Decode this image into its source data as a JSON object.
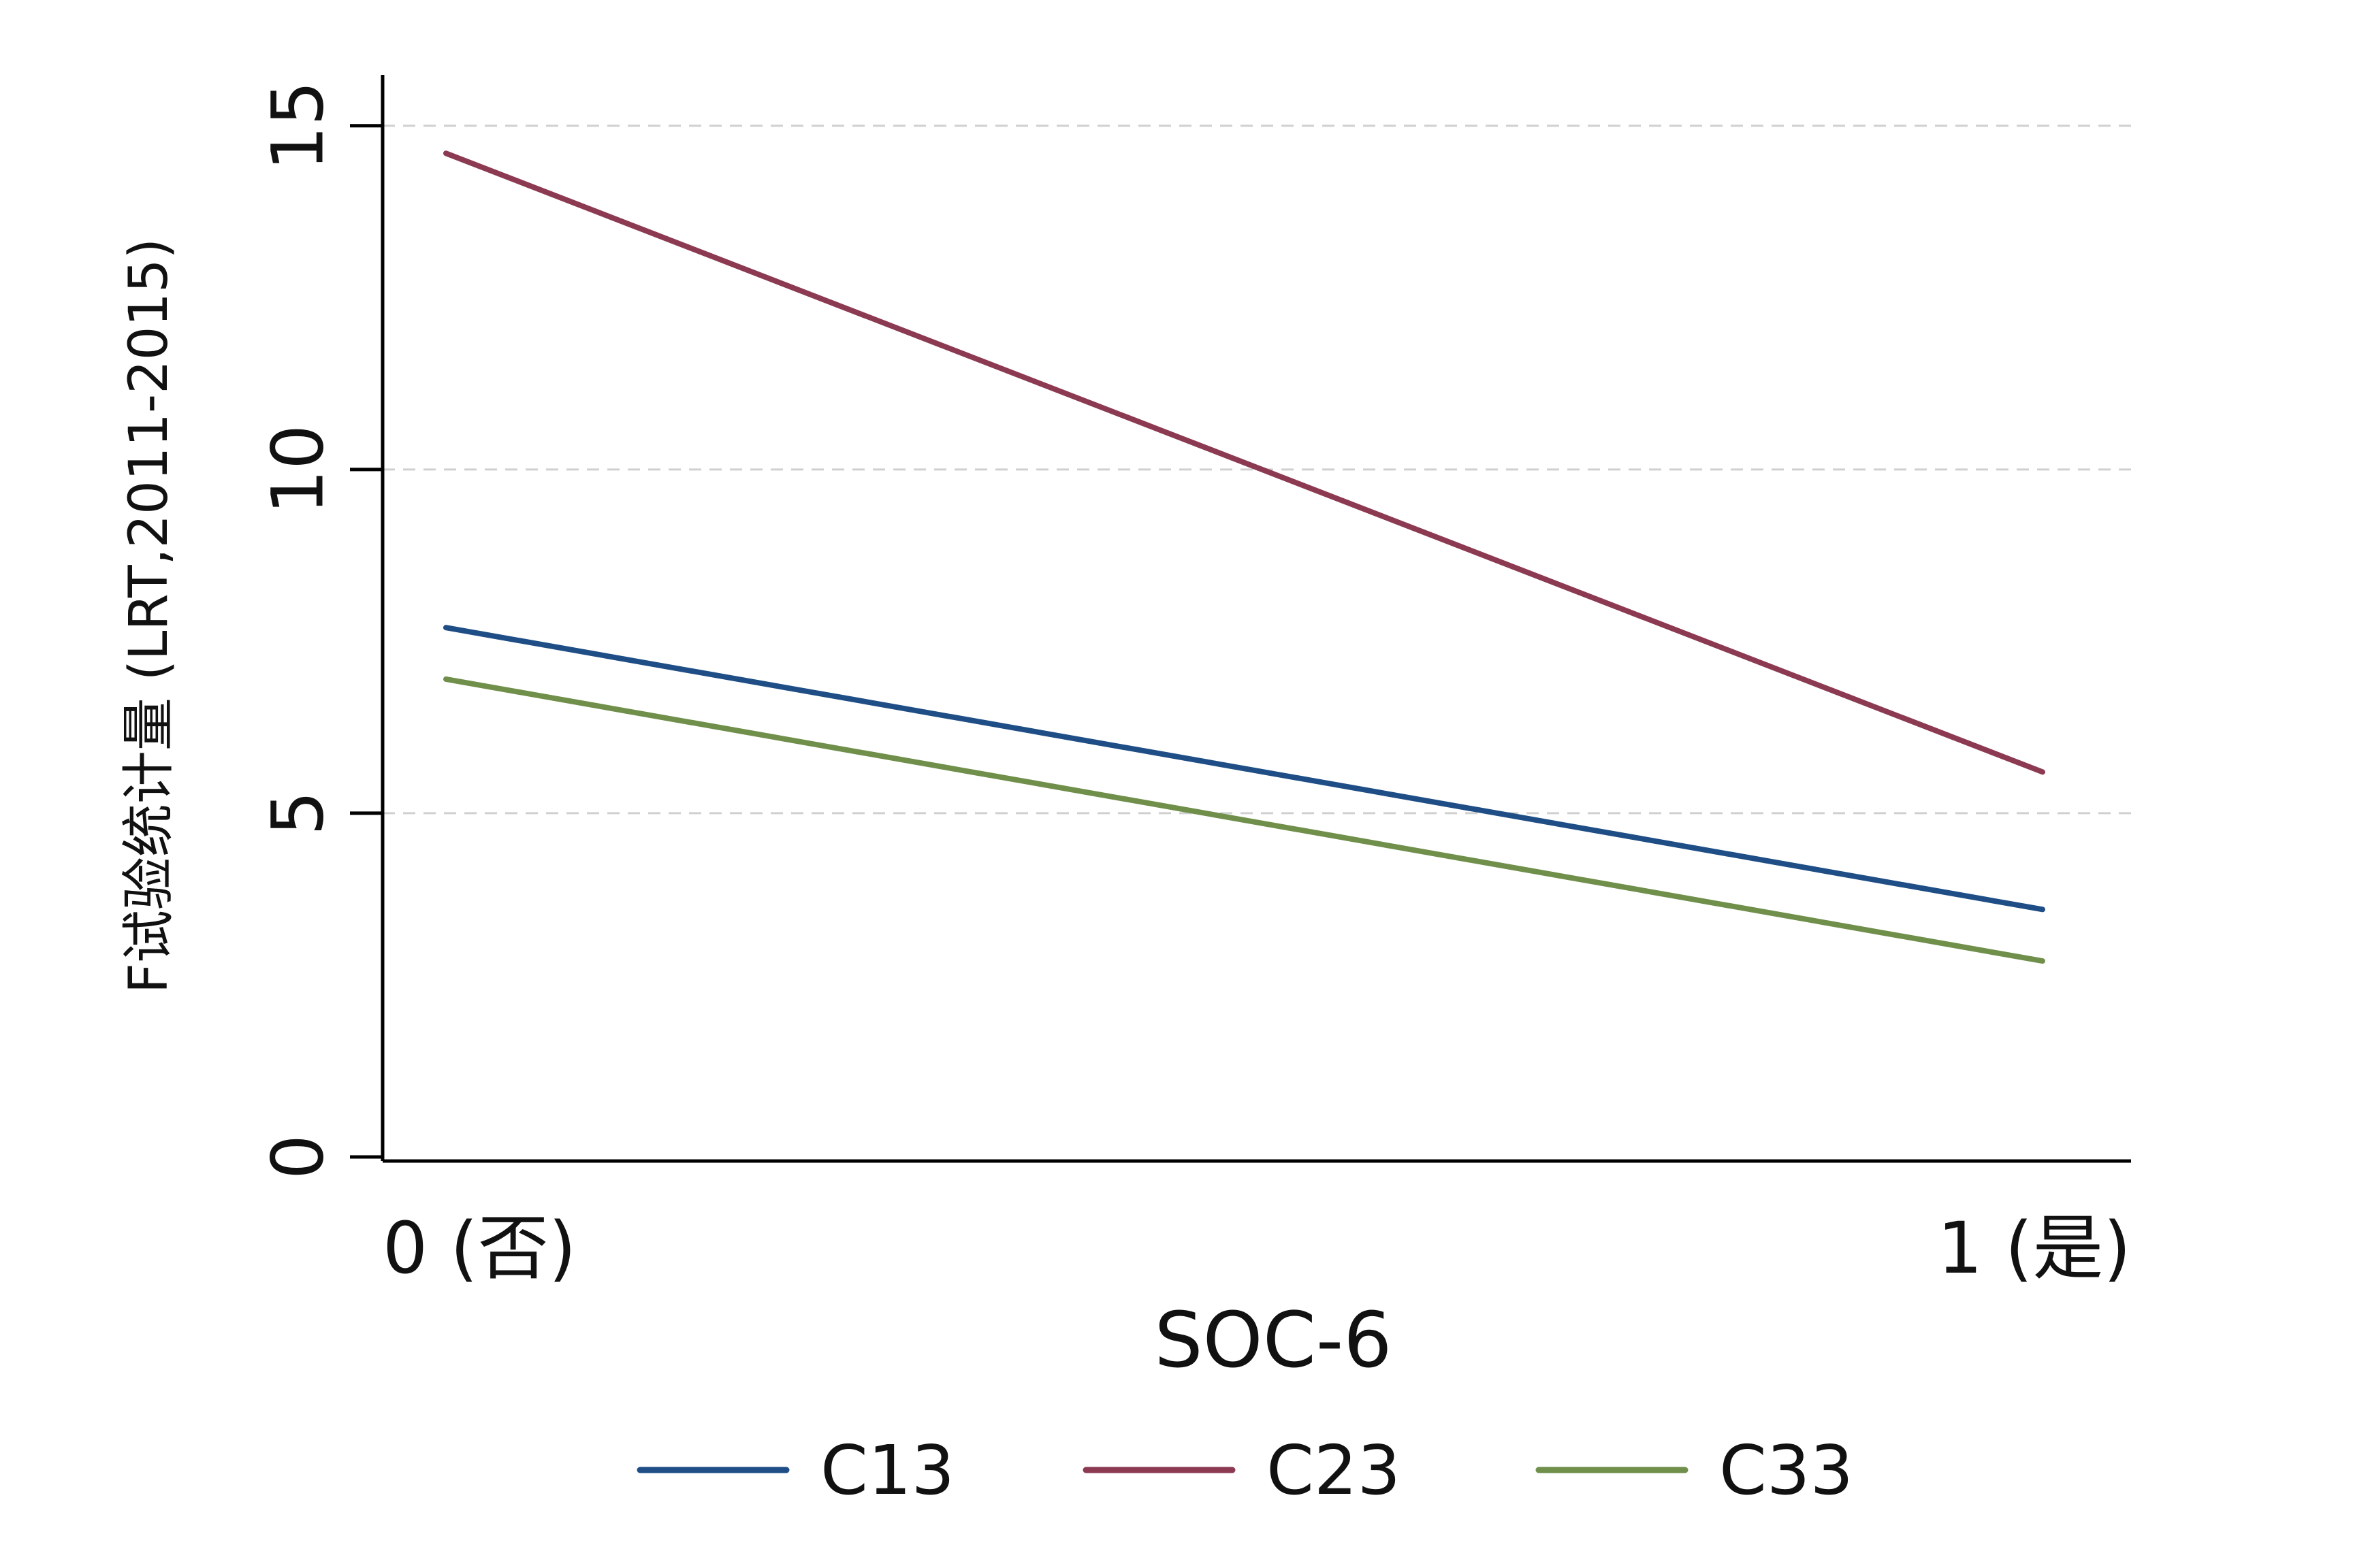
{
  "chart_data": {
    "type": "line",
    "title": "",
    "xlabel": "SOC-6",
    "ylabel": "F试验统计量 (LRT,2011-2015)",
    "x": [
      0,
      1
    ],
    "x_tick_labels": [
      "0 (否)",
      "1 (是)"
    ],
    "y_ticks": [
      0,
      5,
      10,
      15
    ],
    "y_tick_labels": [
      "0",
      "5",
      "10",
      "15"
    ],
    "ylim": [
      0,
      15.8
    ],
    "grid": true,
    "legend_position": "bottom",
    "series": [
      {
        "name": "C13",
        "values": [
          7.7,
          3.6
        ],
        "color": "#1f4e86"
      },
      {
        "name": "C23",
        "values": [
          14.6,
          5.6
        ],
        "color": "#8b3a52"
      },
      {
        "name": "C33",
        "values": [
          6.95,
          2.85
        ],
        "color": "#6f8f4a"
      }
    ]
  }
}
